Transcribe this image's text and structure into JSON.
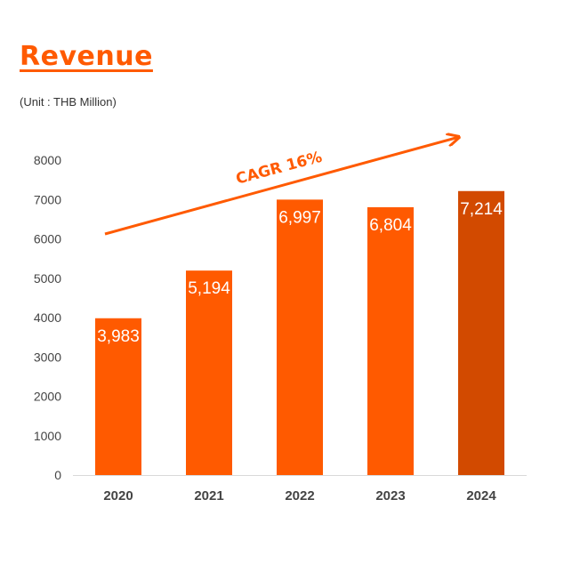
{
  "title": "Revenue",
  "unit": "(Unit : THB Million)",
  "chart_data": {
    "type": "bar",
    "categories": [
      "2020",
      "2021",
      "2022",
      "2023",
      "2024"
    ],
    "values": [
      3983,
      5194,
      6997,
      6804,
      7214
    ],
    "value_labels": [
      "3,983",
      "5,194",
      "6,997",
      "6,804",
      "7,214"
    ],
    "ylim": [
      0,
      8000
    ],
    "yticks": [
      0,
      1000,
      2000,
      3000,
      4000,
      5000,
      6000,
      7000,
      8000
    ],
    "grid": false,
    "legend": "none",
    "annotation": "CAGR 16%",
    "colors": {
      "bar": "#ff5a00",
      "highlight_bar": "#d24a00",
      "highlight_index": 4,
      "arrow": "#ff5a00",
      "title": "#ff5a00"
    }
  }
}
